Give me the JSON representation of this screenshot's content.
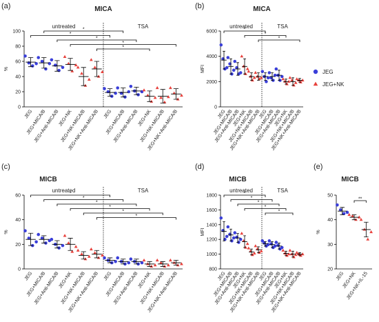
{
  "chart_data": [
    {
      "type": "scatter",
      "label": "(a)",
      "title": "MICA",
      "ylabel": "%",
      "ylim": [
        0,
        100
      ],
      "yticks": [
        0,
        20,
        40,
        60,
        80,
        100
      ],
      "categories": [
        "JEG",
        "JEG+MICA/B",
        "JEG+Anti-MICA/B",
        "JEG+NK",
        "JEG+NK+MICA/B",
        "JEG+NK+Anti-MICA/B",
        "JEG",
        "JEG+MICA/B",
        "JEG+Anti-MICA/B",
        "JEG+NK",
        "JEG+NK+MICA/B",
        "JEG+NK+Anti-MICA/B"
      ],
      "groups": [
        {
          "label": "untreated",
          "from": 0,
          "to": 5
        },
        {
          "label": "TSA",
          "from": 6,
          "to": 11
        }
      ],
      "series": [
        {
          "name": "JEG",
          "color": "#3a3fd9",
          "marker": "circle",
          "values": [
            {
              "mean": 59,
              "sd": 6,
              "points": [
                67,
                58,
                54,
                57
              ]
            },
            {
              "mean": 58,
              "sd": 7,
              "points": [
                65,
                60,
                50,
                57
              ]
            },
            {
              "mean": 54,
              "sd": 7,
              "points": [
                62,
                55,
                48,
                52
              ]
            },
            null,
            null,
            null,
            {
              "mean": 19,
              "sd": 5,
              "points": [
                24,
                20,
                14,
                18
              ]
            },
            {
              "mean": 19,
              "sd": 6,
              "points": [
                25,
                18,
                13,
                20
              ]
            },
            {
              "mean": 21,
              "sd": 5,
              "points": [
                27,
                21,
                16,
                20
              ]
            },
            null,
            null,
            null
          ]
        },
        {
          "name": "JEG+NK",
          "color": "#e8413c",
          "marker": "triangle",
          "values": [
            null,
            null,
            null,
            {
              "mean": 56,
              "sd": 8,
              "points": [
                66,
                57,
                47,
                55
              ]
            },
            {
              "mean": 40,
              "sd": 12,
              "points": [
                52,
                44,
                28,
                36
              ]
            },
            {
              "mean": 50,
              "sd": 10,
              "points": [
                62,
                52,
                40,
                46
              ]
            },
            null,
            null,
            null,
            {
              "mean": 14,
              "sd": 7,
              "points": [
                22,
                15,
                7,
                12
              ]
            },
            {
              "mean": 14,
              "sd": 9,
              "points": [
                25,
                12,
                6,
                13
              ]
            },
            {
              "mean": 17,
              "sd": 7,
              "points": [
                25,
                18,
                10,
                15
              ]
            }
          ]
        }
      ],
      "brackets": [
        {
          "from": 1,
          "to": 7,
          "label": "*"
        },
        {
          "from": 0,
          "to": 6,
          "label": "*"
        },
        {
          "from": 2,
          "to": 8,
          "label": "*"
        },
        {
          "from": 3,
          "to": 11,
          "label": "*"
        },
        {
          "from": 5,
          "to": 9,
          "label": "*"
        }
      ]
    },
    {
      "type": "scatter",
      "label": "(b)",
      "title": "MICA",
      "ylabel": "MFI",
      "ylim": [
        0,
        6000
      ],
      "yticks": [
        0,
        2000,
        4000,
        6000
      ],
      "legend": true,
      "categories": [
        "JEG",
        "JEG+MICA/B",
        "JEG+Anti-MICA/B",
        "JEG+NK",
        "JEG+NK+MICA/B",
        "JEG+NK+Anti-MICA/B",
        "JEG",
        "JEG+MICA/B",
        "JEG+Anti-MICA/B",
        "JEG+NK",
        "JEG+NK+MICA/B",
        "JEG+NK+Anti-MICA/B"
      ],
      "groups": [
        {
          "label": "untreated",
          "from": 0,
          "to": 5
        },
        {
          "label": "TSA",
          "from": 6,
          "to": 11
        }
      ],
      "series": [
        {
          "name": "JEG",
          "color": "#3a3fd9",
          "marker": "circle",
          "values": [
            {
              "mean": 3700,
              "sd": 700,
              "points": [
                4900,
                3800,
                3000,
                3100
              ]
            },
            {
              "mean": 3200,
              "sd": 600,
              "points": [
                3900,
                3400,
                2600,
                2900
              ]
            },
            {
              "mean": 3000,
              "sd": 500,
              "points": [
                3600,
                3100,
                2600,
                2700
              ]
            },
            null,
            null,
            null,
            {
              "mean": 2400,
              "sd": 300,
              "points": [
                2800,
                2400,
                2000,
                2300
              ]
            },
            {
              "mean": 2400,
              "sd": 300,
              "points": [
                2700,
                2300,
                2100,
                2500
              ]
            },
            {
              "mean": 2500,
              "sd": 400,
              "points": [
                3000,
                2500,
                2100,
                2400
              ]
            },
            null,
            null,
            null
          ]
        },
        {
          "name": "JEG+NK",
          "color": "#e8413c",
          "marker": "triangle",
          "values": [
            null,
            null,
            null,
            {
              "mean": 3200,
              "sd": 600,
              "points": [
                4000,
                3200,
                2600,
                3000
              ]
            },
            {
              "mean": 2400,
              "sd": 300,
              "points": [
                2800,
                2400,
                2100,
                2300
              ]
            },
            {
              "mean": 2400,
              "sd": 300,
              "points": [
                2700,
                2400,
                2200,
                2300
              ]
            },
            null,
            null,
            null,
            {
              "mean": 2000,
              "sd": 200,
              "points": [
                2200,
                2000,
                1800,
                2000
              ]
            },
            {
              "mean": 2000,
              "sd": 300,
              "points": [
                2300,
                2100,
                1700,
                1900
              ]
            },
            {
              "mean": 2100,
              "sd": 150,
              "points": [
                2200,
                2100,
                1950,
                2100
              ]
            }
          ]
        }
      ],
      "brackets": [
        {
          "from": 0,
          "to": 6,
          "label": "*"
        },
        {
          "from": 3,
          "to": 9,
          "label": "*"
        },
        {
          "from": 5,
          "to": 11,
          "label": "*"
        }
      ]
    },
    {
      "type": "scatter",
      "label": "(c)",
      "title": "MICB",
      "ylabel": "%",
      "ylim": [
        0,
        60
      ],
      "yticks": [
        0,
        20,
        40,
        60
      ],
      "categories": [
        "JEG",
        "JEG+MICA/B",
        "JEG+Anti-MICA/B",
        "JEG+NK",
        "JEG+NK+MICA/B",
        "JEG+NK+Anti-MICA/B",
        "JEG",
        "JEG+MICA/B",
        "JEG+Anti-MICA/B",
        "JEG+NK",
        "JEG+NK+MICA/B",
        "JEG+NK+Anti-MICA/B"
      ],
      "groups": [
        {
          "label": "untreated",
          "from": 0,
          "to": 5
        },
        {
          "label": "TSA",
          "from": 6,
          "to": 11
        }
      ],
      "series": [
        {
          "name": "JEG",
          "color": "#3a3fd9",
          "marker": "circle",
          "values": [
            {
              "mean": 24,
              "sd": 5,
              "points": [
                31,
                25,
                19,
                22
              ]
            },
            {
              "mean": 24,
              "sd": 3,
              "points": [
                28,
                25,
                21,
                23
              ]
            },
            {
              "mean": 20,
              "sd": 3,
              "points": [
                24,
                20,
                17,
                19
              ]
            },
            null,
            null,
            null,
            {
              "mean": 7,
              "sd": 2,
              "points": [
                9,
                7,
                5,
                6
              ]
            },
            {
              "mean": 6,
              "sd": 2,
              "points": [
                9,
                6,
                4,
                5
              ]
            },
            {
              "mean": 6,
              "sd": 2,
              "points": [
                8,
                6,
                4,
                5
              ]
            },
            null,
            null,
            null
          ]
        },
        {
          "name": "JEG+NK",
          "color": "#e8413c",
          "marker": "triangle",
          "values": [
            null,
            null,
            null,
            {
              "mean": 20,
              "sd": 5,
              "points": [
                27,
                21,
                14,
                18
              ]
            },
            {
              "mean": 11,
              "sd": 3,
              "points": [
                15,
                12,
                8,
                10
              ]
            },
            {
              "mean": 12,
              "sd": 3,
              "points": [
                16,
                13,
                9,
                11
              ]
            },
            null,
            null,
            null,
            {
              "mean": 4,
              "sd": 2,
              "points": [
                7,
                4,
                2,
                3
              ]
            },
            {
              "mean": 4,
              "sd": 2,
              "points": [
                7,
                5,
                2,
                3
              ]
            },
            {
              "mean": 5,
              "sd": 2,
              "points": [
                7,
                5,
                3,
                4
              ]
            }
          ]
        }
      ],
      "brackets": [
        {
          "from": 0,
          "to": 6,
          "label": "*"
        },
        {
          "from": 1,
          "to": 7,
          "label": "*"
        },
        {
          "from": 2,
          "to": 8,
          "label": "*"
        },
        {
          "from": 3,
          "to": 9,
          "label": "*"
        },
        {
          "from": 4,
          "to": 10,
          "label": "*"
        },
        {
          "from": 5,
          "to": 11,
          "label": "*"
        }
      ]
    },
    {
      "type": "scatter",
      "label": "(d)",
      "title": "MICB",
      "ylabel": "MFI",
      "ylim": [
        800,
        1800
      ],
      "yticks": [
        800,
        1000,
        1200,
        1400,
        1600,
        1800
      ],
      "categories": [
        "JEG",
        "JEG+MICA/B",
        "JEG+Anti-MICA/B",
        "JEG+NK",
        "JEG+NK+MICA/B",
        "JEG+NK+Anti-MICA/B",
        "JEG",
        "JEG+MICA/B",
        "JEG+Anti-MICA/B",
        "JEG+NK",
        "JEG+NK+MICA/B",
        "JEG+NK+Anti-MICA/B"
      ],
      "groups": [
        {
          "label": "untreated",
          "from": 0,
          "to": 5
        },
        {
          "label": "TSA",
          "from": 6,
          "to": 11
        }
      ],
      "series": [
        {
          "name": "JEG",
          "color": "#3a3fd9",
          "marker": "circle",
          "values": [
            {
              "mean": 1310,
              "sd": 130,
              "points": [
                1490,
                1320,
                1200,
                1240
              ]
            },
            {
              "mean": 1260,
              "sd": 80,
              "points": [
                1370,
                1270,
                1180,
                1220
              ]
            },
            {
              "mean": 1220,
              "sd": 60,
              "points": [
                1290,
                1230,
                1160,
                1200
              ]
            },
            null,
            null,
            null,
            {
              "mean": 1140,
              "sd": 30,
              "points": [
                1180,
                1150,
                1110,
                1130
              ]
            },
            {
              "mean": 1130,
              "sd": 40,
              "points": [
                1180,
                1140,
                1090,
                1110
              ]
            },
            {
              "mean": 1110,
              "sd": 40,
              "points": [
                1160,
                1120,
                1070,
                1090
              ]
            },
            null,
            null,
            null
          ]
        },
        {
          "name": "JEG+NK",
          "color": "#e8413c",
          "marker": "triangle",
          "values": [
            null,
            null,
            null,
            {
              "mean": 1170,
              "sd": 80,
              "points": [
                1280,
                1180,
                1090,
                1140
              ]
            },
            {
              "mean": 1030,
              "sd": 40,
              "points": [
                1080,
                1040,
                990,
                1010
              ]
            },
            {
              "mean": 1060,
              "sd": 40,
              "points": [
                1110,
                1070,
                1020,
                1040
              ]
            },
            null,
            null,
            null,
            {
              "mean": 1010,
              "sd": 30,
              "points": [
                1050,
                1010,
                980,
                1000
              ]
            },
            {
              "mean": 1000,
              "sd": 40,
              "points": [
                1050,
                1000,
                960,
                990
              ]
            },
            {
              "mean": 1000,
              "sd": 20,
              "points": [
                1020,
                1000,
                980,
                1000
              ]
            }
          ]
        }
      ],
      "brackets": [
        {
          "from": 0,
          "to": 6,
          "label": "*"
        },
        {
          "from": 1,
          "to": 7,
          "label": "*"
        },
        {
          "from": 2,
          "to": 8,
          "label": "*"
        },
        {
          "from": 3,
          "to": 9,
          "label": "*"
        },
        {
          "from": 6,
          "to": 10,
          "label": "*"
        }
      ]
    },
    {
      "type": "scatter",
      "label": "(e)",
      "title": "MICB",
      "ylabel": "%",
      "ylim": [
        20,
        50
      ],
      "yticks": [
        20,
        30,
        40,
        50
      ],
      "categories": [
        "JEG",
        "JEG+NK",
        "JEG+NK+IL-15"
      ],
      "series": [
        {
          "name": "JEG",
          "color": "#3a3fd9",
          "marker": "circle",
          "values": [
            {
              "mean": 43.5,
              "sd": 1.5,
              "points": [
                46,
                44,
                42.5,
                43
              ]
            },
            null,
            null
          ]
        },
        {
          "name": "JEG+NK",
          "color": "#e8413c",
          "marker": "triangle",
          "values": [
            null,
            {
              "mean": 41,
              "sd": 1,
              "points": [
                42,
                41.5,
                40,
                41
              ]
            },
            {
              "mean": 36,
              "sd": 3,
              "points": [
                40,
                36,
                32,
                35
              ]
            }
          ]
        }
      ],
      "brackets": [
        {
          "from": 1,
          "to": 2,
          "label": "**"
        }
      ]
    }
  ]
}
